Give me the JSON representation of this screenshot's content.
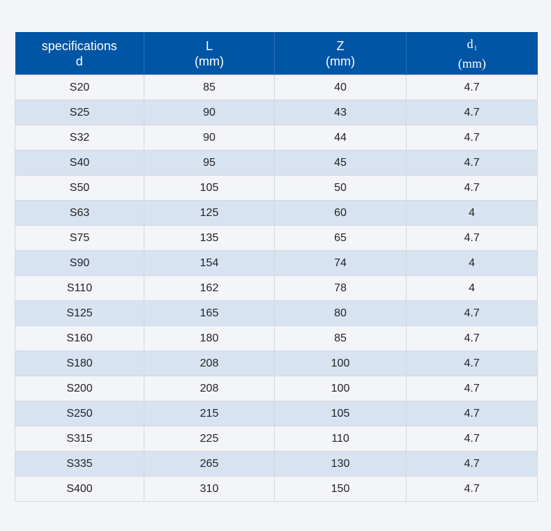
{
  "table": {
    "headers": [
      {
        "line1": "specifications",
        "line2": "d"
      },
      {
        "line1": "L",
        "line2": "(mm)"
      },
      {
        "line1": "Z",
        "line2": "(mm)"
      },
      {
        "line1": "d",
        "sub": "1",
        "line2": "(mm)"
      }
    ],
    "rows": [
      [
        "S20",
        "85",
        "40",
        "4.7"
      ],
      [
        "S25",
        "90",
        "43",
        "4.7"
      ],
      [
        "S32",
        "90",
        "44",
        "4.7"
      ],
      [
        "S40",
        "95",
        "45",
        "4.7"
      ],
      [
        "S50",
        "105",
        "50",
        "4.7"
      ],
      [
        "S63",
        "125",
        "60",
        "4"
      ],
      [
        "S75",
        "135",
        "65",
        "4.7"
      ],
      [
        "S90",
        "154",
        "74",
        "4"
      ],
      [
        "S110",
        "162",
        "78",
        "4"
      ],
      [
        "S125",
        "165",
        "80",
        "4.7"
      ],
      [
        "S160",
        "180",
        "85",
        "4.7"
      ],
      [
        "S180",
        "208",
        "100",
        "4.7"
      ],
      [
        "S200",
        "208",
        "100",
        "4.7"
      ],
      [
        "S250",
        "215",
        "105",
        "4.7"
      ],
      [
        "S315",
        "225",
        "110",
        "4.7"
      ],
      [
        "S335",
        "265",
        "130",
        "4.7"
      ],
      [
        "S400",
        "310",
        "150",
        "4.7"
      ]
    ]
  },
  "colors": {
    "header_bg": "#0055a5",
    "row_light": "#f4f5f9",
    "row_tint": "#d7e3f1"
  }
}
